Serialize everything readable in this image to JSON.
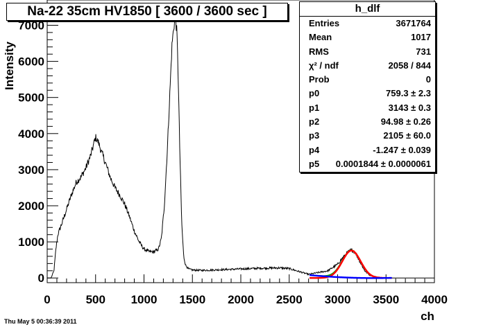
{
  "title": "Na-22 35cm HV1850 [ 3600 / 3600 sec ]",
  "stats": {
    "name": "h_dlf",
    "rows": [
      {
        "label": "Entries",
        "value": "3671764"
      },
      {
        "label": "Mean",
        "value": "1017"
      },
      {
        "label": "RMS",
        "value": "731"
      },
      {
        "label": "χ² / ndf",
        "value": "2058 / 844"
      },
      {
        "label": "Prob",
        "value": "0"
      },
      {
        "label": "p0",
        "value": "759.3 ± 2.3"
      },
      {
        "label": "p1",
        "value": "3143 ± 0.3"
      },
      {
        "label": "p2",
        "value": "94.98 ± 0.26"
      },
      {
        "label": "p3",
        "value": "2105 ± 60.0"
      },
      {
        "label": "p4",
        "value": "-1.247 ± 0.039"
      },
      {
        "label": "p5",
        "value": "0.0001844 ± 0.0000061"
      }
    ]
  },
  "footer": "Thu May  5 00:36:39 2011",
  "chart_data": {
    "type": "line",
    "title": "Na-22 35cm HV1850 [ 3600 / 3600 sec ]",
    "xlabel": "ch",
    "ylabel": "Intensity",
    "xlim": [
      0,
      4000
    ],
    "ylim": [
      -130,
      7700
    ],
    "xticks": [
      0,
      500,
      1000,
      1500,
      2000,
      2500,
      3000,
      3500,
      4000
    ],
    "yticks": [
      0,
      1000,
      2000,
      3000,
      4000,
      5000,
      6000,
      7000
    ],
    "grid": false,
    "colors": {
      "histogram": "#000000",
      "gaussian": "#ff0000",
      "fit_total": "#00aa00",
      "background": "#0000ff"
    },
    "series": [
      {
        "name": "h_dlf",
        "x": [
          0,
          40,
          70,
          90,
          110,
          150,
          200,
          250,
          300,
          350,
          400,
          450,
          480,
          500,
          530,
          560,
          600,
          650,
          700,
          750,
          800,
          850,
          900,
          950,
          1000,
          1050,
          1100,
          1150,
          1180,
          1210,
          1240,
          1270,
          1290,
          1310,
          1325,
          1340,
          1355,
          1370,
          1390,
          1410,
          1430,
          1460,
          1500,
          1600,
          1800,
          2000,
          2200,
          2400,
          2500,
          2600,
          2700,
          2800,
          2900,
          3000,
          3050,
          3100,
          3140,
          3180,
          3230,
          3280,
          3330,
          3400,
          3500,
          3600,
          3800,
          4000
        ],
        "y": [
          0,
          0,
          200,
          800,
          1200,
          1500,
          1900,
          2300,
          2650,
          2800,
          3050,
          3400,
          3700,
          3900,
          3750,
          3500,
          3200,
          2800,
          2500,
          2300,
          2050,
          1700,
          1300,
          1000,
          800,
          730,
          720,
          800,
          1100,
          2000,
          3500,
          5300,
          6500,
          7000,
          7200,
          6800,
          5400,
          3500,
          1500,
          600,
          350,
          250,
          220,
          210,
          230,
          250,
          270,
          280,
          260,
          180,
          100,
          150,
          200,
          380,
          550,
          700,
          780,
          720,
          450,
          200,
          80,
          30,
          0,
          0,
          0,
          0
        ]
      }
    ],
    "fit": {
      "p0": 759.3,
      "p1": 3143,
      "p2": 94.98,
      "p3": 2105,
      "p4": -1.247,
      "p5": 0.0001844,
      "range": [
        2710,
        3560
      ]
    }
  }
}
